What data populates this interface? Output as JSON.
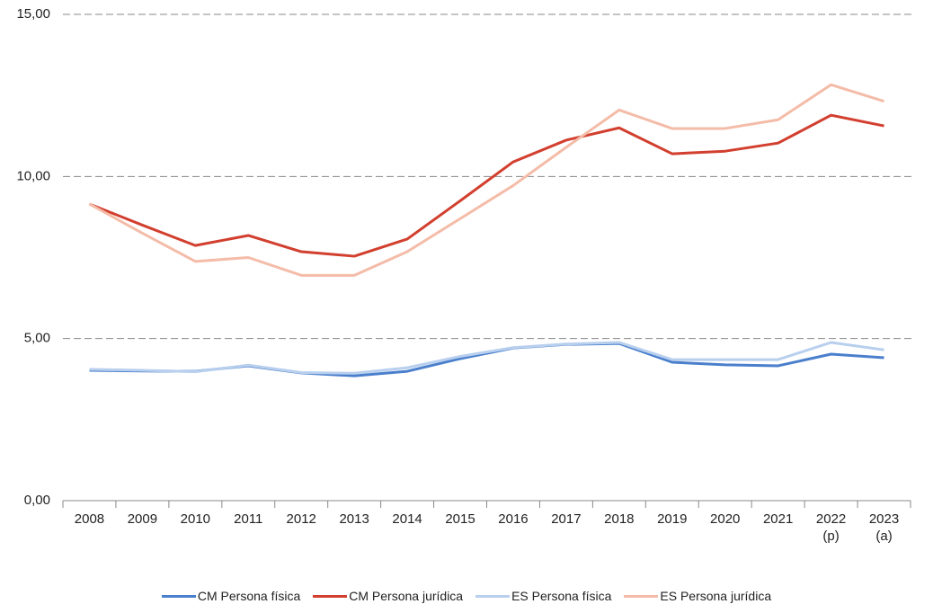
{
  "chart_data": {
    "type": "line",
    "categories": [
      "2008",
      "2009",
      "2010",
      "2011",
      "2012",
      "2013",
      "2014",
      "2015",
      "2016",
      "2017",
      "2018",
      "2019",
      "2020",
      "2021",
      "2022\n(p)",
      "2023\n(a)"
    ],
    "series": [
      {
        "name": "CM Persona física",
        "color": "#4a7fcc",
        "values": [
          4.02,
          4.0,
          3.99,
          4.16,
          3.94,
          3.85,
          3.99,
          4.38,
          4.71,
          4.82,
          4.85,
          4.27,
          4.19,
          4.16,
          4.52,
          4.41
        ]
      },
      {
        "name": "CM Persona jurídica",
        "color": "#d23f2e",
        "values": [
          9.15,
          8.5,
          7.87,
          8.18,
          7.68,
          7.54,
          8.07,
          9.25,
          10.45,
          11.12,
          11.5,
          10.7,
          10.78,
          11.03,
          11.89,
          11.56
        ]
      },
      {
        "name": "ES Persona física",
        "color": "#b8cfee",
        "values": [
          4.05,
          4.02,
          3.98,
          4.18,
          3.95,
          3.93,
          4.1,
          4.45,
          4.72,
          4.83,
          4.88,
          4.35,
          4.35,
          4.35,
          4.88,
          4.65
        ]
      },
      {
        "name": "ES Persona jurídica",
        "color": "#f4bca8",
        "values": [
          9.15,
          8.25,
          7.38,
          7.5,
          6.95,
          6.95,
          7.68,
          8.7,
          9.72,
          10.9,
          12.05,
          11.48,
          11.48,
          11.75,
          12.83,
          12.32
        ]
      }
    ],
    "ylim": [
      0,
      15
    ],
    "yticks": [
      {
        "value": 0,
        "label": "0,00"
      },
      {
        "value": 5,
        "label": "5,00"
      },
      {
        "value": 10,
        "label": "10,00"
      },
      {
        "value": 15,
        "label": "15,00"
      }
    ],
    "grid": true,
    "legend": "bottom"
  }
}
